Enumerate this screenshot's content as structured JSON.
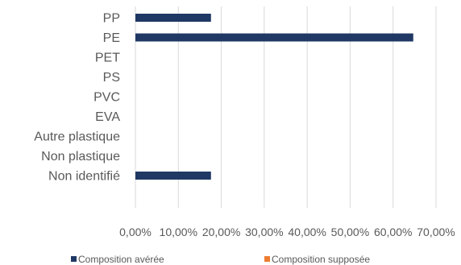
{
  "chart_data": {
    "type": "bar",
    "orientation": "horizontal",
    "categories": [
      "PP",
      "PE",
      "PET",
      "PS",
      "PVC",
      "EVA",
      "Autre plastique",
      "Non plastique",
      "Non identifié"
    ],
    "series": [
      {
        "name": "Composition avérée",
        "color": "#1F3864",
        "values": [
          17.6,
          64.7,
          0,
          0,
          0,
          0,
          0,
          0,
          17.6
        ]
      },
      {
        "name": "Composition supposée",
        "color": "#ED7D31",
        "values": [
          0,
          0,
          0,
          0,
          0,
          0,
          0,
          0,
          0
        ]
      }
    ],
    "xlim": [
      0,
      70
    ],
    "xticks": [
      0,
      10,
      20,
      30,
      40,
      50,
      60,
      70
    ],
    "tick_labels": [
      "0,00%",
      "10,00%",
      "20,00%",
      "30,00%",
      "40,00%",
      "50,00%",
      "60,00%",
      "70,00%"
    ],
    "grid": true,
    "gridline_color": "#D9D9D9",
    "legend_position": "bottom"
  }
}
